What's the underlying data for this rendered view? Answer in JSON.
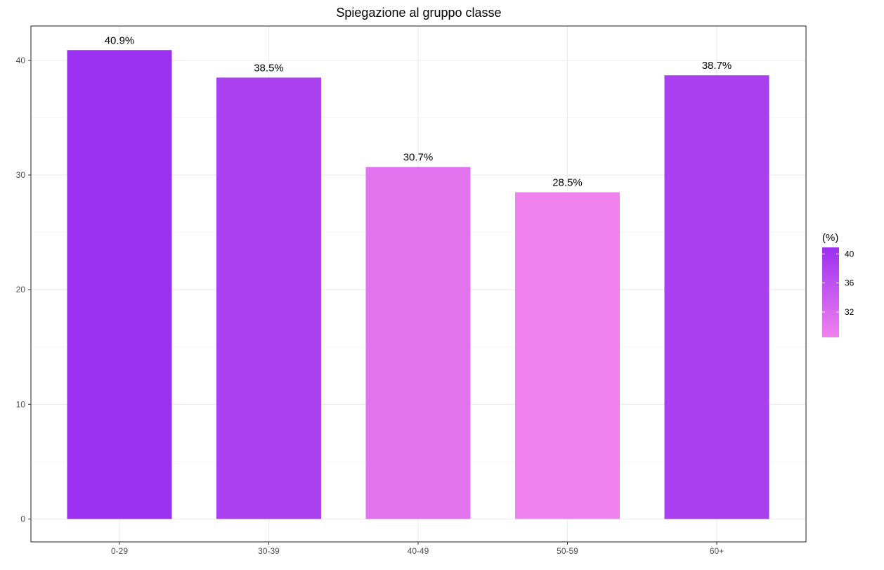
{
  "chart_data": {
    "type": "bar",
    "title": "Spiegazione al gruppo classe",
    "xlabel": "",
    "ylabel": "",
    "categories": [
      "0-29",
      "30-39",
      "40-49",
      "50-59",
      "60+"
    ],
    "values": [
      40.9,
      38.5,
      30.7,
      28.5,
      38.7
    ],
    "data_labels": [
      "40.9%",
      "38.5%",
      "30.7%",
      "28.5%",
      "38.7%"
    ],
    "ylim": [
      -2,
      43
    ],
    "y_ticks": [
      0,
      10,
      20,
      30,
      40
    ],
    "y_tick_labels": [
      "0",
      "10",
      "20",
      "30",
      "40"
    ],
    "grid": true,
    "legend": {
      "title": "(%)",
      "placement": "right",
      "type": "colorbar",
      "range": [
        28.5,
        40.9
      ],
      "ticks": [
        40,
        36,
        32
      ],
      "tick_labels": [
        "40",
        "36",
        "32"
      ],
      "color_high": "#9b30f1",
      "color_low": "#f082ee"
    }
  }
}
